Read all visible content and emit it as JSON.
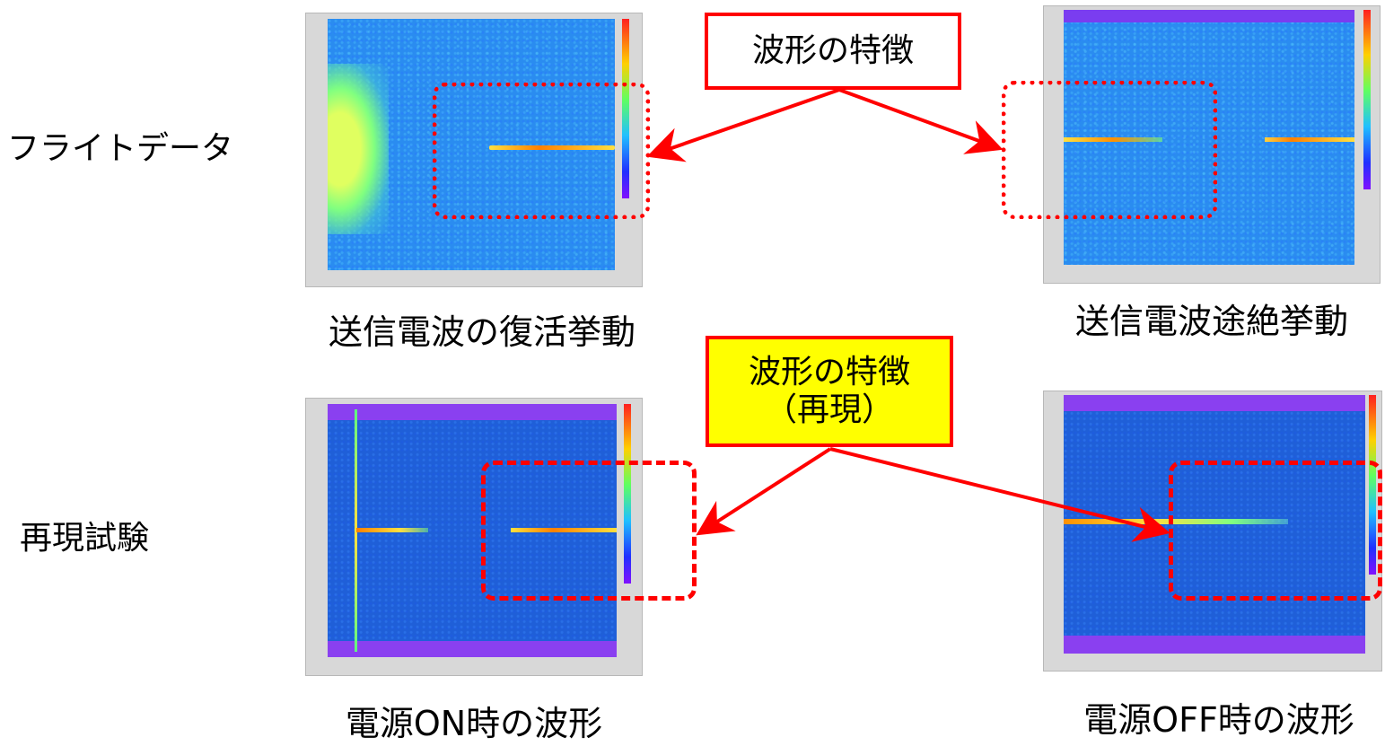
{
  "rows": {
    "flight": "フライトデータ",
    "repro": "再現試験"
  },
  "captions": {
    "top_left": "送信電波の復活挙動",
    "top_right": "送信電波途絶挙動",
    "bottom_left": "電源ON時の波形",
    "bottom_right": "電源OFF時の波形"
  },
  "callouts": {
    "top": {
      "line1": "波形の特徴"
    },
    "bottom": {
      "line1": "波形の特徴",
      "line2": "（再現）"
    }
  },
  "colors": {
    "annotation_red": "#ff0000",
    "callout_yellow": "#ffff00",
    "spectrogram_bg": "#2a8cf0"
  }
}
